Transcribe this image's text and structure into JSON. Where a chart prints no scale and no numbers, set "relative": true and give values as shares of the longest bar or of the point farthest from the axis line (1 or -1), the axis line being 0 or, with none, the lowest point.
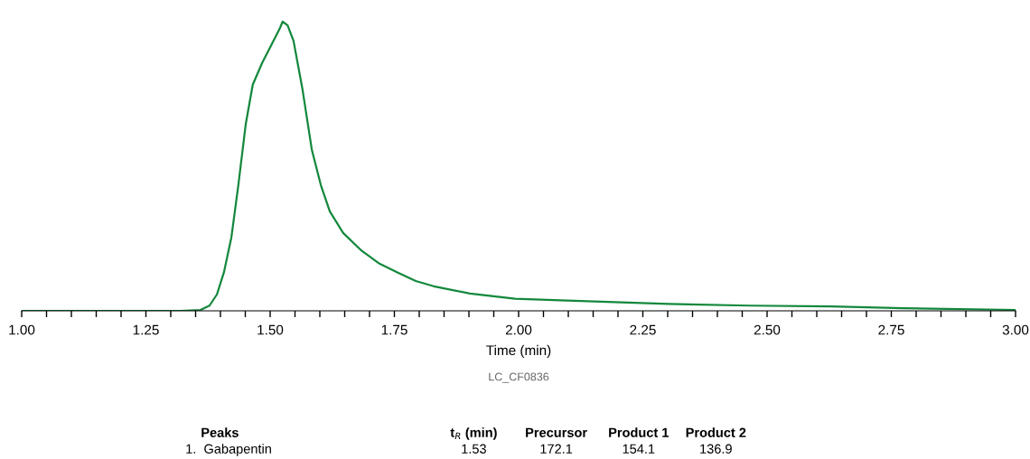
{
  "chart_data": {
    "type": "line",
    "relative": true,
    "xlabel": "Time (min)",
    "x": [
      1.0,
      1.32,
      1.36,
      1.378,
      1.393,
      1.407,
      1.422,
      1.436,
      1.451,
      1.465,
      1.484,
      1.502,
      1.52,
      1.525,
      1.535,
      1.547,
      1.565,
      1.584,
      1.602,
      1.62,
      1.647,
      1.684,
      1.72,
      1.756,
      1.793,
      1.829,
      1.902,
      1.993,
      2.084,
      2.193,
      2.302,
      2.465,
      2.629,
      2.775,
      3.0
    ],
    "series": [
      {
        "color": "#13883c",
        "values": [
          0,
          0,
          0.003,
          0.018,
          0.057,
          0.133,
          0.254,
          0.435,
          0.647,
          0.782,
          0.858,
          0.918,
          0.979,
          1.0,
          0.988,
          0.934,
          0.767,
          0.556,
          0.435,
          0.344,
          0.269,
          0.208,
          0.163,
          0.133,
          0.103,
          0.085,
          0.06,
          0.042,
          0.036,
          0.03,
          0.024,
          0.018,
          0.015,
          0.009,
          0.003
        ]
      }
    ],
    "xlim": [
      1.0,
      3.0
    ],
    "xticks": [
      {
        "value": 1.0,
        "label": "1.00"
      },
      {
        "value": 1.05,
        "label": null
      },
      {
        "value": 1.1,
        "label": null
      },
      {
        "value": 1.15,
        "label": null
      },
      {
        "value": 1.2,
        "label": null
      },
      {
        "value": 1.25,
        "label": "1.25"
      },
      {
        "value": 1.3,
        "label": null
      },
      {
        "value": 1.35,
        "label": null
      },
      {
        "value": 1.4,
        "label": null
      },
      {
        "value": 1.45,
        "label": null
      },
      {
        "value": 1.5,
        "label": "1.50"
      },
      {
        "value": 1.55,
        "label": null
      },
      {
        "value": 1.6,
        "label": null
      },
      {
        "value": 1.65,
        "label": null
      },
      {
        "value": 1.7,
        "label": null
      },
      {
        "value": 1.75,
        "label": "1.75"
      },
      {
        "value": 1.8,
        "label": null
      },
      {
        "value": 1.85,
        "label": null
      },
      {
        "value": 1.9,
        "label": null
      },
      {
        "value": 1.95,
        "label": null
      },
      {
        "value": 2.0,
        "label": "2.00"
      },
      {
        "value": 2.05,
        "label": null
      },
      {
        "value": 2.1,
        "label": null
      },
      {
        "value": 2.15,
        "label": null
      },
      {
        "value": 2.2,
        "label": null
      },
      {
        "value": 2.25,
        "label": "2.25"
      },
      {
        "value": 2.3,
        "label": null
      },
      {
        "value": 2.35,
        "label": null
      },
      {
        "value": 2.4,
        "label": null
      },
      {
        "value": 2.45,
        "label": null
      },
      {
        "value": 2.5,
        "label": "2.50"
      },
      {
        "value": 2.55,
        "label": null
      },
      {
        "value": 2.6,
        "label": null
      },
      {
        "value": 2.65,
        "label": null
      },
      {
        "value": 2.7,
        "label": null
      },
      {
        "value": 2.75,
        "label": "2.75"
      },
      {
        "value": 2.8,
        "label": null
      },
      {
        "value": 2.85,
        "label": null
      },
      {
        "value": 2.9,
        "label": null
      },
      {
        "value": 2.95,
        "label": null
      },
      {
        "value": 3.0,
        "label": "3.00"
      }
    ],
    "tick_labels": "x",
    "line_style": "solid",
    "annotations": [
      "LC_CF0836",
      "Peaks",
      "t$_{R}$ (min)",
      "Precursor",
      "Product 1",
      "Product 2",
      "1.  Gabapentin",
      "1.53",
      "172.1",
      "154.1",
      "136.9"
    ]
  }
}
